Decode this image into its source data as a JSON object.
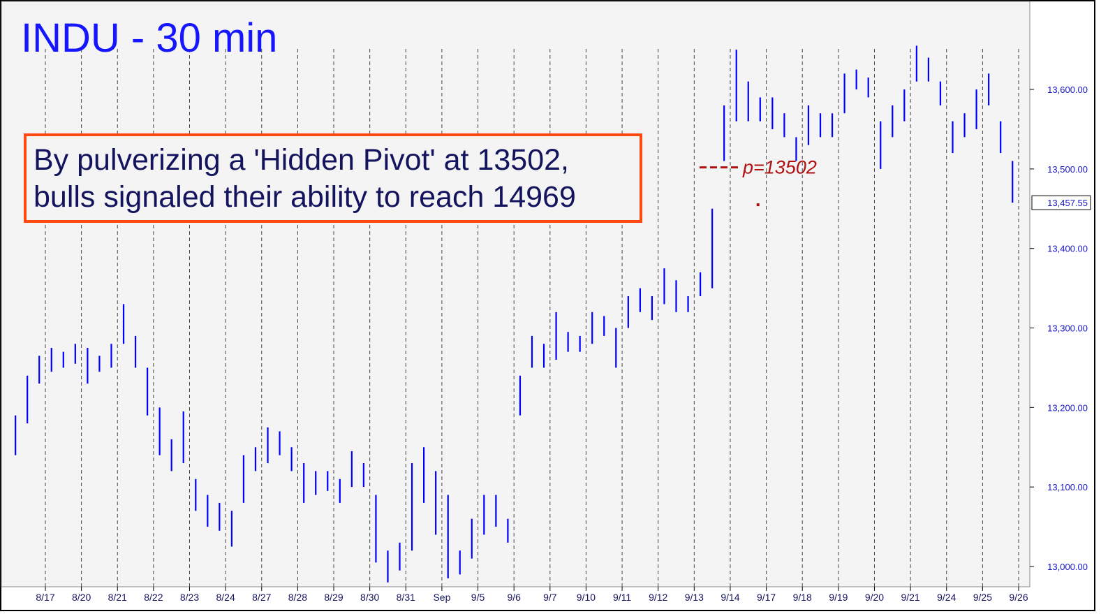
{
  "chart_data": {
    "type": "range-bar",
    "title": "INDU - 30 min",
    "annotation": {
      "lines": [
        "By pulverizing a 'Hidden Pivot' at 13502,",
        "bulls signaled their ability to reach 14969"
      ]
    },
    "pivot": {
      "value": 13502,
      "label": "p=13502",
      "color": "#b01010"
    },
    "marker": {
      "x": 19.77,
      "y": 13455,
      "color": "#b01010"
    },
    "last_price": {
      "value": 13457.55,
      "label": "13,457.55"
    },
    "color": "#0000ff",
    "xlim": [
      -1.22,
      27.31
    ],
    "ylim": [
      12974.5,
      13712.5
    ],
    "xticks": [
      {
        "value": 0,
        "label": "8/17"
      },
      {
        "value": 1,
        "label": "8/20"
      },
      {
        "value": 2,
        "label": "8/21"
      },
      {
        "value": 3,
        "label": "8/22"
      },
      {
        "value": 4,
        "label": "8/23"
      },
      {
        "value": 5,
        "label": "8/24"
      },
      {
        "value": 6,
        "label": "8/27"
      },
      {
        "value": 7,
        "label": "8/28"
      },
      {
        "value": 8,
        "label": "8/29"
      },
      {
        "value": 9,
        "label": "8/30"
      },
      {
        "value": 10,
        "label": "8/31"
      },
      {
        "value": 11,
        "label": "Sep"
      },
      {
        "value": 12,
        "label": "9/5"
      },
      {
        "value": 13,
        "label": "9/6"
      },
      {
        "value": 14,
        "label": "9/7"
      },
      {
        "value": 15,
        "label": "9/10"
      },
      {
        "value": 16,
        "label": "9/11"
      },
      {
        "value": 17,
        "label": "9/12"
      },
      {
        "value": 18,
        "label": "9/13"
      },
      {
        "value": 19,
        "label": "9/14"
      },
      {
        "value": 20,
        "label": "9/17"
      },
      {
        "value": 21,
        "label": "9/18"
      },
      {
        "value": 22,
        "label": "9/19"
      },
      {
        "value": 23,
        "label": "9/20"
      },
      {
        "value": 24,
        "label": "9/21"
      },
      {
        "value": 25,
        "label": "9/24"
      },
      {
        "value": 26,
        "label": "9/25"
      },
      {
        "value": 27,
        "label": "9/26"
      }
    ],
    "yticks": [
      {
        "value": 13000,
        "label": "13,000.00"
      },
      {
        "value": 13100,
        "label": "13,100.00"
      },
      {
        "value": 13200,
        "label": "13,200.00"
      },
      {
        "value": 13300,
        "label": "13,300.00"
      },
      {
        "value": 13400,
        "label": "13,400.00"
      },
      {
        "value": 13500,
        "label": "13,500.00"
      },
      {
        "value": 13600,
        "label": "13,600.00"
      }
    ],
    "grid": true,
    "x": [
      -0.83,
      -0.5,
      -0.17,
      0.17,
      0.5,
      0.83,
      1.17,
      1.5,
      1.83,
      2.17,
      2.5,
      2.83,
      3.17,
      3.5,
      3.83,
      4.17,
      4.5,
      4.83,
      5.17,
      5.5,
      5.83,
      6.17,
      6.5,
      6.83,
      7.17,
      7.5,
      7.83,
      8.17,
      8.5,
      8.83,
      9.17,
      9.5,
      9.83,
      10.17,
      10.5,
      10.83,
      11.17,
      11.5,
      11.83,
      12.17,
      12.5,
      12.83,
      13.17,
      13.5,
      13.83,
      14.17,
      14.5,
      14.83,
      15.17,
      15.5,
      15.83,
      16.17,
      16.5,
      16.83,
      17.17,
      17.5,
      17.83,
      18.17,
      18.5,
      18.83,
      19.17,
      19.5,
      19.83,
      20.17,
      20.5,
      20.83,
      21.17,
      21.5,
      21.83,
      22.17,
      22.5,
      22.83,
      23.17,
      23.5,
      23.83,
      24.17,
      24.5,
      24.83,
      25.17,
      25.5,
      25.83,
      26.17,
      26.5,
      26.83
    ],
    "high": [
      13190,
      13240,
      13265,
      13275,
      13270,
      13280,
      13275,
      13265,
      13280,
      13330,
      13290,
      13250,
      13200,
      13160,
      13195,
      13110,
      13090,
      13080,
      13070,
      13140,
      13150,
      13175,
      13170,
      13150,
      13130,
      13120,
      13120,
      13110,
      13145,
      13130,
      13090,
      13020,
      13030,
      13130,
      13150,
      13120,
      13090,
      13020,
      13060,
      13090,
      13090,
      13060,
      13240,
      13290,
      13280,
      13320,
      13295,
      13290,
      13320,
      13315,
      13300,
      13340,
      13350,
      13340,
      13375,
      13360,
      13340,
      13370,
      13450,
      13580,
      13650,
      13610,
      13590,
      13590,
      13570,
      13540,
      13580,
      13570,
      13570,
      13620,
      13625,
      13615,
      13560,
      13580,
      13600,
      13655,
      13640,
      13610,
      13560,
      13570,
      13600,
      13620,
      13560,
      13510
    ],
    "low": [
      13140,
      13180,
      13230,
      13245,
      13250,
      13255,
      13230,
      13245,
      13250,
      13280,
      13250,
      13190,
      13140,
      13120,
      13130,
      13070,
      13050,
      13045,
      13025,
      13080,
      13120,
      13130,
      13140,
      13120,
      13080,
      13090,
      13095,
      13080,
      13100,
      13100,
      13005,
      12980,
      12995,
      13020,
      13080,
      13040,
      12985,
      12990,
      13010,
      13040,
      13050,
      13030,
      13190,
      13250,
      13250,
      13260,
      13270,
      13270,
      13280,
      13290,
      13250,
      13300,
      13320,
      13310,
      13330,
      13320,
      13320,
      13340,
      13350,
      13510,
      13560,
      13560,
      13560,
      13550,
      13540,
      13510,
      13530,
      13540,
      13540,
      13570,
      13600,
      13590,
      13500,
      13540,
      13560,
      13610,
      13610,
      13580,
      13520,
      13540,
      13550,
      13580,
      13520,
      13457.55
    ]
  }
}
